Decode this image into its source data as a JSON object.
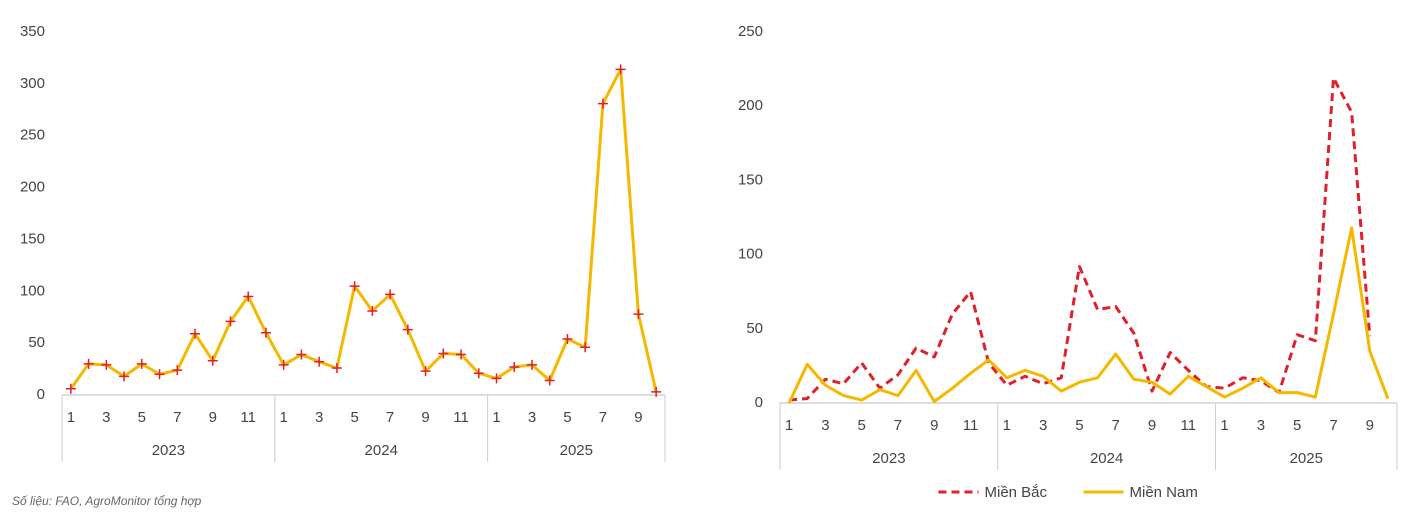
{
  "chart_data": [
    {
      "type": "line",
      "categories": [
        "1",
        null,
        "3",
        null,
        "5",
        null,
        "7",
        null,
        "9",
        null,
        "11",
        null,
        "1",
        null,
        "3",
        null,
        "5",
        null,
        "7",
        null,
        "9",
        null,
        "11",
        null,
        "1",
        null,
        "3",
        null,
        "5",
        null,
        "7",
        null,
        "9",
        null
      ],
      "groups": [
        {
          "name": "2023",
          "size": 12
        },
        {
          "name": "2024",
          "size": 12
        },
        {
          "name": "2025",
          "size": 10
        }
      ],
      "series": [
        {
          "color": "#f5b800",
          "marker": "+",
          "marker_color": "#e0202a",
          "values": [
            6,
            30,
            29,
            18,
            30,
            20,
            24,
            59,
            33,
            71,
            95,
            60,
            29,
            39,
            32,
            26,
            105,
            81,
            97,
            63,
            23,
            40,
            39,
            21,
            16,
            27,
            29,
            14,
            54,
            46,
            281,
            314,
            78,
            3
          ]
        }
      ],
      "ylim": [
        0,
        350
      ],
      "yticks": [
        0,
        50,
        100,
        150,
        200,
        250,
        300,
        350
      ],
      "grid": false
    },
    {
      "type": "line",
      "categories": [
        "1",
        null,
        "3",
        null,
        "5",
        null,
        "7",
        null,
        "9",
        null,
        "11",
        null,
        "1",
        null,
        "3",
        null,
        "5",
        null,
        "7",
        null,
        "9",
        null,
        "11",
        null,
        "1",
        null,
        "3",
        null,
        "5",
        null,
        "7",
        null,
        "9",
        null
      ],
      "groups": [
        {
          "name": "2023",
          "size": 12
        },
        {
          "name": "2024",
          "size": 12
        },
        {
          "name": "2025",
          "size": 10
        }
      ],
      "series": [
        {
          "name": "Miền Bắc",
          "color": "#e0202a",
          "line_style": "dashed",
          "values": [
            2,
            3,
            16,
            13,
            27,
            10,
            19,
            37,
            31,
            60,
            75,
            27,
            12,
            18,
            13,
            17,
            92,
            63,
            65,
            47,
            8,
            34,
            22,
            11,
            10,
            17,
            15,
            7,
            46,
            42,
            219,
            196,
            45,
            null
          ]
        },
        {
          "name": "Miền Nam",
          "color": "#f5b800",
          "line_style": "solid",
          "values": [
            0,
            26,
            12,
            5,
            2,
            9,
            5,
            22,
            1,
            10,
            20,
            29,
            17,
            22,
            18,
            8,
            14,
            17,
            33,
            16,
            14,
            6,
            18,
            11,
            4,
            10,
            17,
            7,
            7,
            4,
            60,
            118,
            35,
            3
          ]
        }
      ],
      "ylim": [
        0,
        250
      ],
      "yticks": [
        0,
        50,
        100,
        150,
        200,
        250
      ],
      "grid": false,
      "legend": "bottom"
    }
  ],
  "source": "Số liệu: FAO, AgroMonitor tổng hợp"
}
